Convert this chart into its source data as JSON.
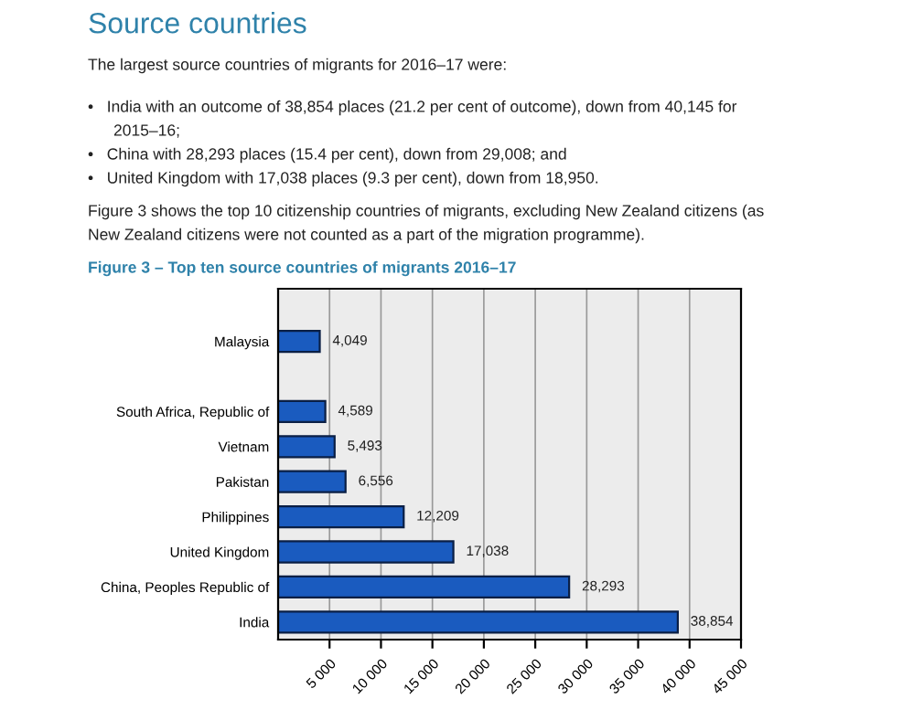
{
  "chart_data": {
    "type": "bar",
    "orientation": "horizontal",
    "title": "Figure 3 – Top ten source countries of migrants 2016–17",
    "annotations": [
      "Source countries",
      "The largest source countries of migrants for 2016–17 were:",
      "•   India with an outcome of 38,854 places (21.2 per cent of outcome), down from 40,145 for",
      "2015–16;",
      "•   China with 28,293 places (15.4 per cent), down from 29,008; and",
      "•   United Kingdom with 17,038 places (9.3 per cent), down from 18,950.",
      "Figure 3 shows the top 10 citizenship countries of migrants, excluding New Zealand citizens (as",
      "New Zealand citizens were not counted as a part of the migration programme)."
    ],
    "categories": [
      null,
      "Malaysia",
      null,
      "South Africa, Republic of",
      "Vietnam",
      "Pakistan",
      "Philippines",
      "United Kingdom",
      "China, Peoples Republic of",
      "India"
    ],
    "values": [
      null,
      4049,
      null,
      4589,
      5493,
      6556,
      12209,
      17038,
      28293,
      38854
    ],
    "value_labels": [
      null,
      "4,049",
      null,
      "4,589",
      "5,493",
      "6,556",
      "12,209",
      "17,038",
      "28,293",
      "38,854"
    ],
    "color": "#1a5bbf",
    "xlim": [
      0,
      45000
    ],
    "xticks": [
      {
        "value": 5000,
        "label": "5 000"
      },
      {
        "value": 10000,
        "label": "10 000"
      },
      {
        "value": 15000,
        "label": "15 000"
      },
      {
        "value": 20000,
        "label": "20 000"
      },
      {
        "value": 25000,
        "label": "25 000"
      },
      {
        "value": 30000,
        "label": "30 000"
      },
      {
        "value": 35000,
        "label": "35 000"
      },
      {
        "value": 40000,
        "label": "40 000"
      },
      {
        "value": 45000,
        "label": "45 000"
      }
    ],
    "grid": "x",
    "legend": false
  }
}
